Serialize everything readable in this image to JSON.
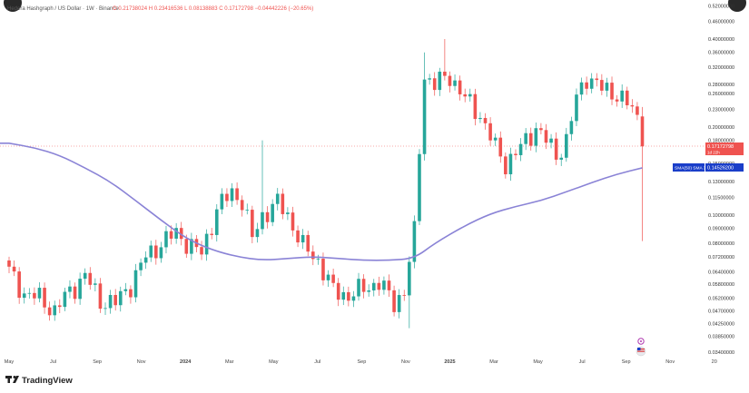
{
  "header": {
    "symbol": "Hedera Hashgraph / US Dollar · 1W · Binance",
    "ohlc": "O 0.21738024 H 0.23416536 L 0.08138883 C 0.17172798 −0.04442226 (−20.65%)"
  },
  "footer": {
    "logo_text": "TradingView"
  },
  "price_labels": {
    "last_price": "0.17172798",
    "countdown": "1d 22h",
    "sma_label": "SMA(50) SMA 3",
    "sma_value": "0.14526200"
  },
  "colors": {
    "up": "#26a69a",
    "down": "#ef5350",
    "sma": "#8a83d6",
    "sma_label_bg": "#1a3ec9",
    "axis_text": "#333333"
  },
  "icons": [
    "tradingview-logo-icon",
    "bell-icon",
    "flag-icon"
  ],
  "chart_data": {
    "type": "candlestick",
    "y_scale": "log",
    "y_ticks": [
      "0.52000000",
      "0.46000000",
      "0.40000000",
      "0.36000000",
      "0.32000000",
      "0.28000000",
      "0.26000000",
      "0.23000000",
      "0.20000000",
      "0.18000000",
      "0.15000000",
      "0.13000000",
      "0.11500000",
      "0.10000000",
      "0.09000000",
      "0.08000000",
      "0.07200000",
      "0.06400000",
      "0.05800000",
      "0.05200000",
      "0.04700000",
      "0.04250000",
      "0.03850000",
      "0.03400000"
    ],
    "x_ticks": [
      "May",
      "Jul",
      "Sep",
      "Nov",
      "2024",
      "Mar",
      "May",
      "Jul",
      "Sep",
      "Nov",
      "2025",
      "Mar",
      "May",
      "Jul",
      "Sep",
      "Nov",
      "20"
    ],
    "x_tick_positions": [
      0,
      8.7,
      17.4,
      26.1,
      34.8,
      43.5,
      52.2,
      60.9,
      69.6,
      78.3,
      87,
      95.7,
      104.4,
      113.1,
      121.8,
      130.5,
      139.2
    ],
    "anchor_closes": [
      [
        0,
        0.064
      ],
      [
        3,
        0.054
      ],
      [
        6,
        0.052
      ],
      [
        9,
        0.047
      ],
      [
        12,
        0.055
      ],
      [
        15,
        0.062
      ],
      [
        18,
        0.051
      ],
      [
        21,
        0.05
      ],
      [
        24,
        0.058
      ],
      [
        27,
        0.072
      ],
      [
        30,
        0.08
      ],
      [
        33,
        0.087
      ],
      [
        36,
        0.078
      ],
      [
        38,
        0.074
      ],
      [
        41,
        0.105
      ],
      [
        44,
        0.12
      ],
      [
        46,
        0.112
      ],
      [
        48,
        0.083
      ],
      [
        50,
        0.1
      ],
      [
        53,
        0.11
      ],
      [
        55,
        0.1
      ],
      [
        58,
        0.078
      ],
      [
        61,
        0.07
      ],
      [
        64,
        0.055
      ],
      [
        67,
        0.053
      ],
      [
        70,
        0.056
      ],
      [
        73,
        0.059
      ],
      [
        76,
        0.05
      ],
      [
        78,
        0.055
      ],
      [
        80,
        0.087
      ],
      [
        81,
        0.17
      ],
      [
        82,
        0.3
      ],
      [
        84,
        0.28
      ],
      [
        87,
        0.3
      ],
      [
        90,
        0.25
      ],
      [
        93,
        0.22
      ],
      [
        96,
        0.17
      ],
      [
        98,
        0.15
      ],
      [
        101,
        0.17
      ],
      [
        104,
        0.2
      ],
      [
        106,
        0.18
      ],
      [
        108,
        0.16
      ],
      [
        110,
        0.18
      ],
      [
        112,
        0.25
      ],
      [
        114,
        0.3
      ],
      [
        117,
        0.27
      ],
      [
        120,
        0.26
      ],
      [
        122,
        0.24
      ],
      [
        124,
        0.217
      ],
      [
        125,
        0.172
      ]
    ],
    "special_candles": [
      {
        "week": 50,
        "high": 0.18
      },
      {
        "week": 79,
        "low": 0.041
      },
      {
        "week": 82,
        "high": 0.36
      },
      {
        "week": 86,
        "high": 0.4
      },
      {
        "week": 125,
        "open": 0.21738024,
        "high": 0.23416536,
        "low": 0.08138883,
        "close": 0.17172798
      }
    ],
    "sma_points": [
      [
        0,
        0.176
      ],
      [
        5,
        0.17
      ],
      [
        10,
        0.16
      ],
      [
        15,
        0.145
      ],
      [
        20,
        0.13
      ],
      [
        25,
        0.112
      ],
      [
        30,
        0.096
      ],
      [
        35,
        0.083
      ],
      [
        40,
        0.076
      ],
      [
        45,
        0.072
      ],
      [
        50,
        0.07
      ],
      [
        55,
        0.071
      ],
      [
        60,
        0.072
      ],
      [
        65,
        0.071
      ],
      [
        70,
        0.07
      ],
      [
        75,
        0.07
      ],
      [
        80,
        0.071
      ],
      [
        84,
        0.08
      ],
      [
        90,
        0.092
      ],
      [
        95,
        0.101
      ],
      [
        100,
        0.107
      ],
      [
        105,
        0.112
      ],
      [
        110,
        0.12
      ],
      [
        115,
        0.129
      ],
      [
        120,
        0.138
      ],
      [
        125,
        0.145
      ]
    ]
  }
}
